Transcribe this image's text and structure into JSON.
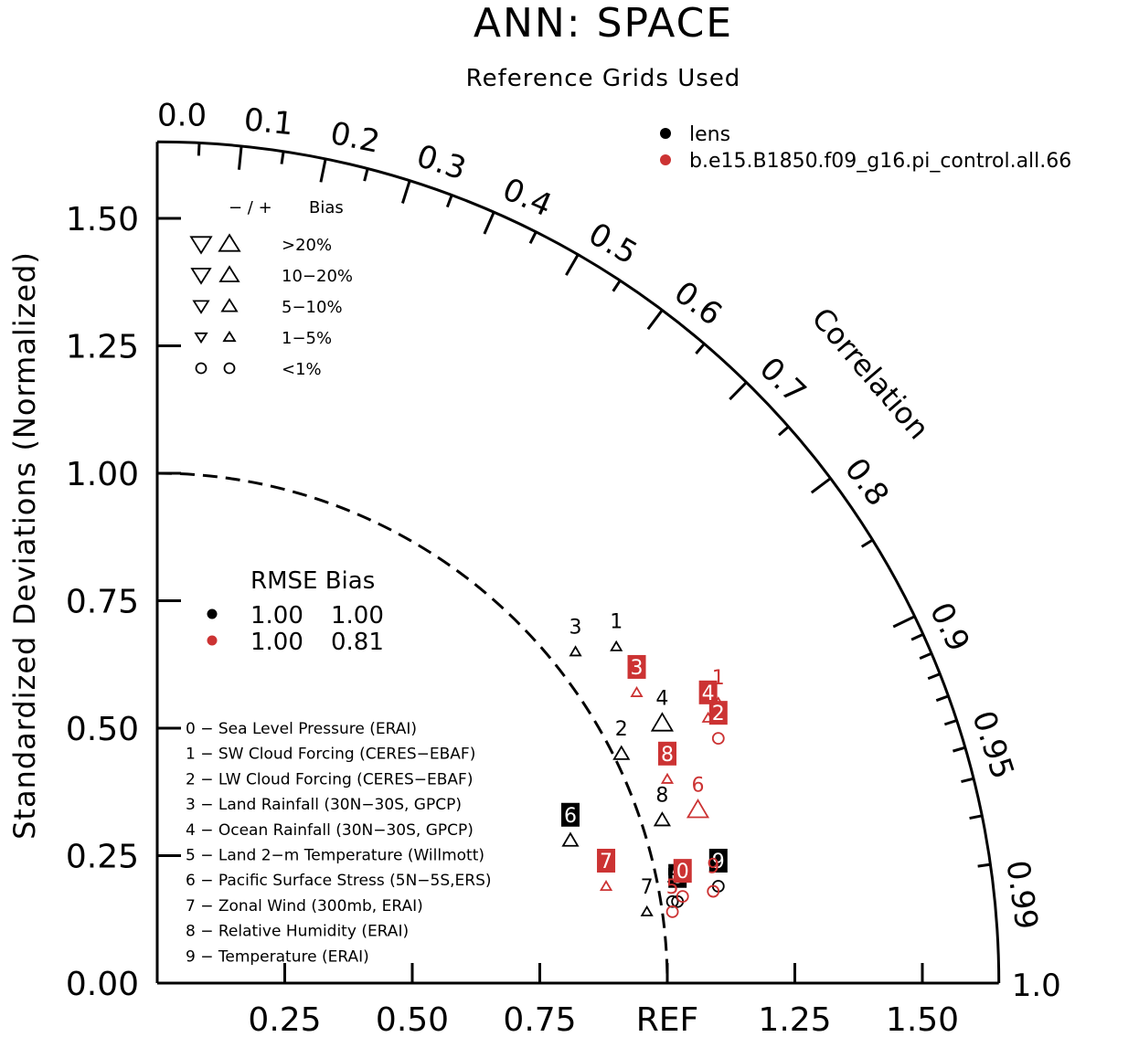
{
  "chart_data": {
    "type": "scatter",
    "subtype": "taylor-diagram",
    "title": "ANN: SPACE",
    "subtitle": "Reference Grids Used",
    "ylabel": "Standardized Deviations (Normalized)",
    "correlation_label": "Correlation",
    "ref_label": "REF",
    "std_max": 1.65,
    "y_ticks": [
      "0.00",
      "0.25",
      "0.50",
      "0.75",
      "1.00",
      "1.25",
      "1.50"
    ],
    "y_tick_values": [
      0,
      0.25,
      0.5,
      0.75,
      1.0,
      1.25,
      1.5
    ],
    "x_ticks": [
      "0.25",
      "0.50",
      "0.75",
      "REF",
      "1.25",
      "1.50"
    ],
    "x_tick_values": [
      0.25,
      0.5,
      0.75,
      1.0,
      1.25,
      1.5
    ],
    "correlation_ticks": [
      "0.0",
      "0.1",
      "0.2",
      "0.3",
      "0.4",
      "0.5",
      "0.6",
      "0.7",
      "0.8",
      "0.9",
      "0.95",
      "0.99",
      "1.0"
    ],
    "correlation_tick_values": [
      0.0,
      0.1,
      0.2,
      0.3,
      0.4,
      0.5,
      0.6,
      0.7,
      0.8,
      0.9,
      0.95,
      0.99,
      1.0
    ],
    "series": [
      {
        "name": "lens",
        "color": "#000000",
        "points": [
          {
            "id": "0",
            "x": 1.02,
            "y": 0.16,
            "bias": "<1%",
            "sign": "-"
          },
          {
            "id": "1",
            "x": 0.9,
            "y": 0.66,
            "bias": "1-5%",
            "sign": "+"
          },
          {
            "id": "2",
            "x": 0.91,
            "y": 0.45,
            "bias": "5-10%",
            "sign": "+"
          },
          {
            "id": "3",
            "x": 0.82,
            "y": 0.65,
            "bias": "1-5%",
            "sign": "+"
          },
          {
            "id": "4",
            "x": 0.99,
            "y": 0.51,
            "bias": "10-20%",
            "sign": "+"
          },
          {
            "id": "5",
            "x": 1.01,
            "y": 0.16,
            "bias": "<1%",
            "sign": "-"
          },
          {
            "id": "6",
            "x": 0.81,
            "y": 0.28,
            "bias": "5-10%",
            "sign": "+"
          },
          {
            "id": "7",
            "x": 0.96,
            "y": 0.14,
            "bias": "1-5%",
            "sign": "+"
          },
          {
            "id": "8",
            "x": 0.99,
            "y": 0.32,
            "bias": "5-10%",
            "sign": "+"
          },
          {
            "id": "9",
            "x": 1.1,
            "y": 0.19,
            "bias": "<1%",
            "sign": "-"
          }
        ]
      },
      {
        "name": "b.e15.B1850.f09_g16.pi_control.all.66",
        "color": "#cc3333",
        "points": [
          {
            "id": "0",
            "x": 1.03,
            "y": 0.17,
            "bias": "<1%",
            "sign": "-"
          },
          {
            "id": "1",
            "x": 1.1,
            "y": 0.55,
            "bias": "1-5%",
            "sign": "+"
          },
          {
            "id": "2",
            "x": 1.1,
            "y": 0.48,
            "bias": "<1%",
            "sign": "-"
          },
          {
            "id": "3",
            "x": 0.94,
            "y": 0.57,
            "bias": "1-5%",
            "sign": "+"
          },
          {
            "id": "4",
            "x": 1.08,
            "y": 0.52,
            "bias": "1-5%",
            "sign": "+"
          },
          {
            "id": "5",
            "x": 1.01,
            "y": 0.14,
            "bias": "<1%",
            "sign": "-"
          },
          {
            "id": "6",
            "x": 1.06,
            "y": 0.34,
            "bias": "10-20%",
            "sign": "+"
          },
          {
            "id": "7",
            "x": 0.88,
            "y": 0.19,
            "bias": "1-5%",
            "sign": "+"
          },
          {
            "id": "8",
            "x": 1.0,
            "y": 0.4,
            "bias": "1-5%",
            "sign": "+"
          },
          {
            "id": "9",
            "x": 1.09,
            "y": 0.18,
            "bias": "<1%",
            "sign": "-"
          }
        ]
      }
    ]
  },
  "series_legend": [
    {
      "name": "lens",
      "color": "#000000"
    },
    {
      "name": "b.e15.B1850.f09_g16.pi_control.all.66",
      "color": "#cc3333"
    }
  ],
  "bias_legend": {
    "header_sign": "−  /  +",
    "header_label": "Bias",
    "rows": [
      "&gt;20%",
      "10−20%",
      "5−10%",
      "1−5%",
      "&lt;1%"
    ]
  },
  "rmse_legend": {
    "header": "RMSE Bias",
    "rows": [
      {
        "rmse": "1.00",
        "bias": "1.00",
        "color": "#000000"
      },
      {
        "rmse": "1.00",
        "bias": "0.81",
        "color": "#cc3333"
      }
    ]
  },
  "variables": [
    "0 − Sea Level Pressure (ERAI)",
    "1 − SW Cloud Forcing (CERES−EBAF)",
    "2 − LW Cloud Forcing (CERES−EBAF)",
    "3 − Land Rainfall (30N−30S, GPCP)",
    "4 − Ocean Rainfall (30N−30S, GPCP)",
    "5 − Land 2−m Temperature (Willmott)",
    "6 − Pacific Surface Stress (5N−5S,ERS)",
    "7 − Zonal Wind (300mb, ERAI)",
    "8 − Relative Humidity (ERAI)",
    "9 − Temperature (ERAI)"
  ]
}
